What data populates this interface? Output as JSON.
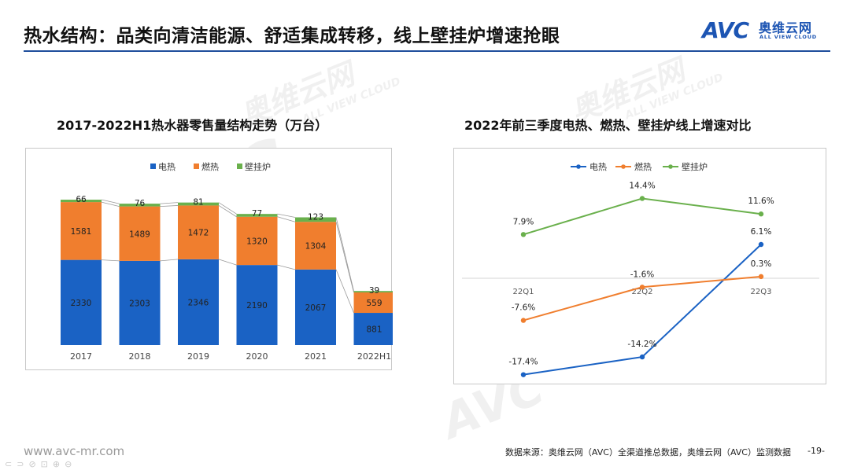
{
  "header": {
    "title": "热水结构：品类向清洁能源、舒适集成转移，线上壁挂炉增速抢眼"
  },
  "logo": {
    "brand": "AVC",
    "name_cn": "奥维云网",
    "name_en": "ALL VIEW CLOUD"
  },
  "watermark": {
    "cn": "奥维云网",
    "en": "ALL VIEW CLOUD",
    "brand": "AVC"
  },
  "colors": {
    "accent": "#1f4e9c",
    "electric": "#1a62c4",
    "gas": "#f07e2e",
    "wallboiler": "#6ab04c"
  },
  "chart_data": [
    {
      "type": "bar",
      "stacked": true,
      "title": "2017-2022H1热水器零售量结构走势（万台）",
      "categories": [
        "2017",
        "2018",
        "2019",
        "2020",
        "2021",
        "2022H1"
      ],
      "series": [
        {
          "name": "电热",
          "values": [
            2330,
            2303,
            2346,
            2190,
            2067,
            881
          ]
        },
        {
          "name": "燃热",
          "values": [
            1581,
            1489,
            1472,
            1320,
            1304,
            559
          ]
        },
        {
          "name": "壁挂炉",
          "values": [
            66,
            76,
            81,
            77,
            123,
            39
          ]
        }
      ],
      "legend": "top-center",
      "ylim": [
        0,
        4300
      ],
      "grid": false
    },
    {
      "type": "line",
      "title": "2022年前三季度电热、燃热、壁挂炉线上增速对比",
      "categories": [
        "22Q1",
        "22Q2",
        "22Q3"
      ],
      "series": [
        {
          "name": "电热",
          "values": [
            -17.4,
            -14.2,
            6.1
          ],
          "labels": [
            "-17.4%",
            "-14.2%",
            "6.1%"
          ]
        },
        {
          "name": "燃热",
          "values": [
            -7.6,
            -1.6,
            0.3
          ],
          "labels": [
            "-7.6%",
            "-1.6%",
            "0.3%"
          ]
        },
        {
          "name": "壁挂炉",
          "values": [
            7.9,
            14.4,
            11.6
          ],
          "labels": [
            "7.9%",
            "14.4%",
            "11.6%"
          ]
        }
      ],
      "legend": "top-center",
      "ylim": [
        -19,
        17
      ],
      "grid": false
    }
  ],
  "footer": {
    "url": "www.avc-mr.com",
    "source": "数据来源：奥维云网（AVC）全渠道推总数据，奥维云网（AVC）监测数据",
    "page": "-19-"
  }
}
